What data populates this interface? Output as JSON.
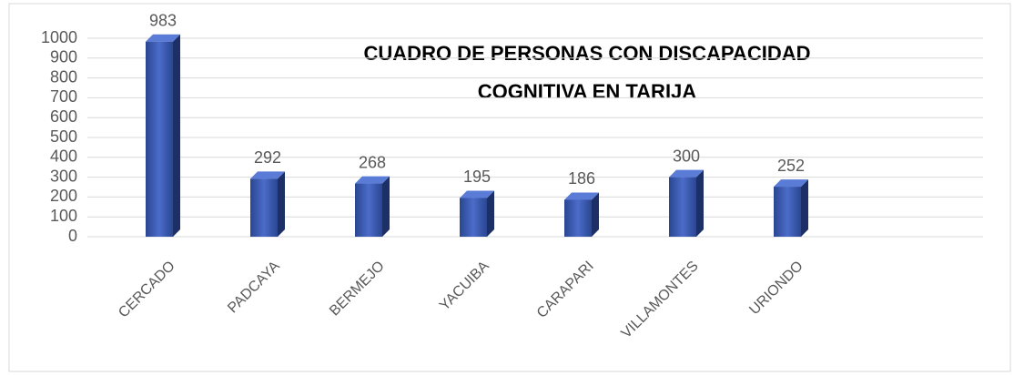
{
  "chart_data": {
    "type": "bar3d",
    "title": [
      "CUADRO DE PERSONAS CON DISCAPACIDAD",
      "COGNITIVA EN TARIJA"
    ],
    "categories": [
      "CERCADO",
      "PADCAYA",
      "BERMEJO",
      "YACUIBA",
      "CARAPARI",
      "VILLAMONTES",
      "URIONDO"
    ],
    "values": [
      983,
      292,
      268,
      195,
      186,
      300,
      252
    ],
    "color": "#2f4ea6",
    "ylim": [
      0,
      1000
    ],
    "yticks": [
      0,
      100,
      200,
      300,
      400,
      500,
      600,
      700,
      800,
      900,
      1000
    ],
    "grid": true
  }
}
